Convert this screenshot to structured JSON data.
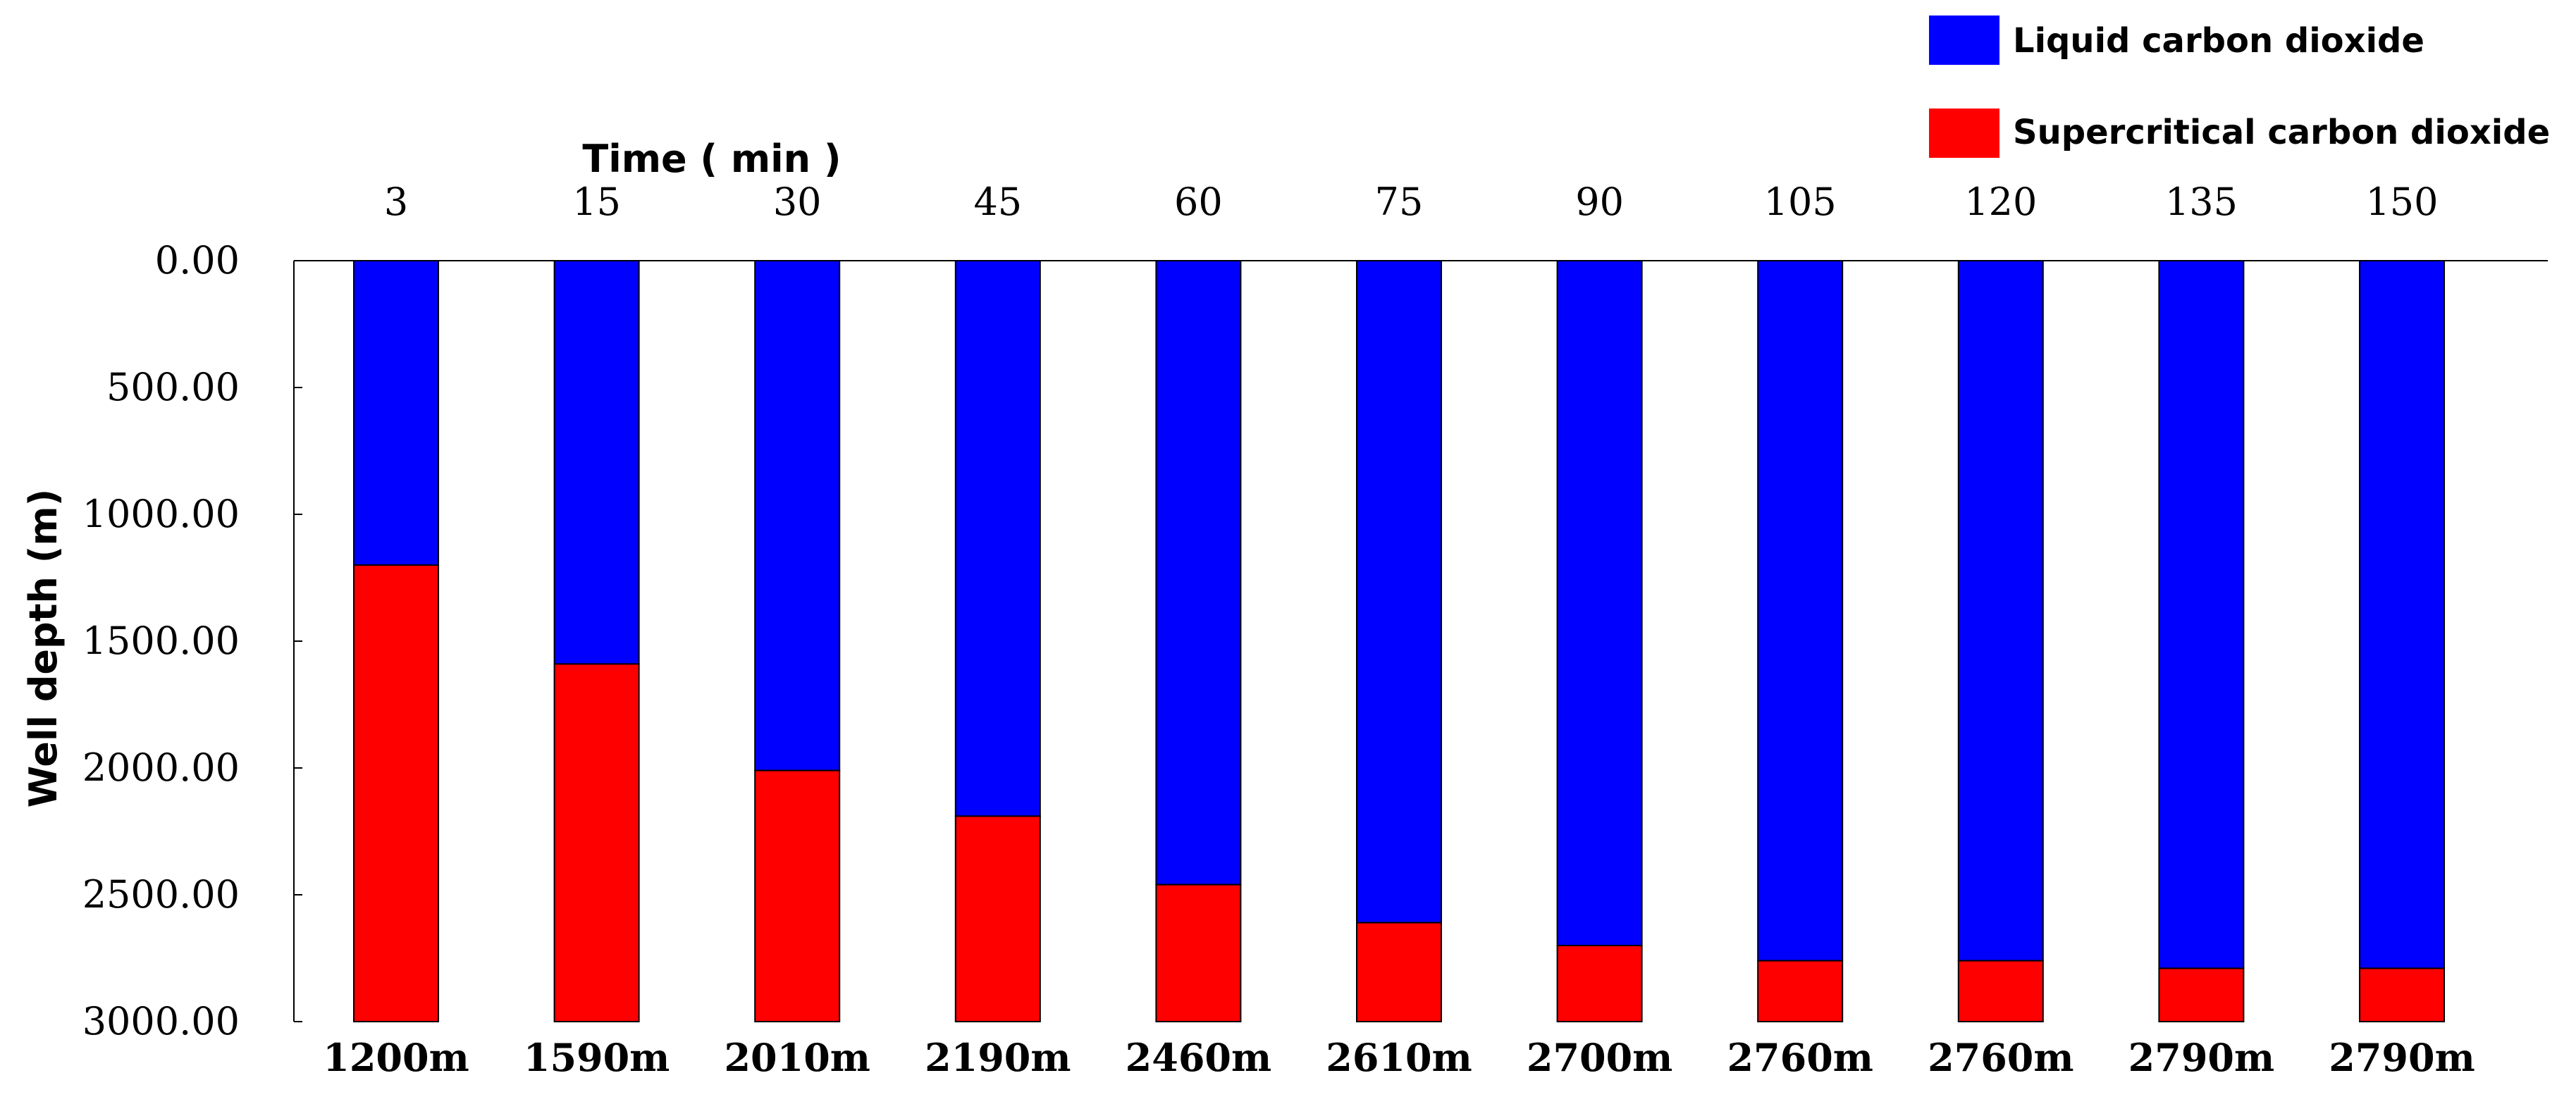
{
  "chart_data": {
    "type": "bar",
    "stacked": true,
    "xlabel": "Time ( min )",
    "ylabel": "Well depth (m)",
    "x_axis_position": "top",
    "y_axis_inverted": true,
    "categories": [
      "3",
      "15",
      "30",
      "45",
      "60",
      "75",
      "90",
      "105",
      "120",
      "135",
      "150"
    ],
    "ylim": [
      0,
      3000
    ],
    "yticks": [
      "0.00",
      "500.00",
      "1000.00",
      "1500.00",
      "2000.00",
      "2500.00",
      "3000.00"
    ],
    "series": [
      {
        "name": "Liquid carbon dioxide",
        "color": "#0000ff",
        "values": [
          1200,
          1590,
          2010,
          2190,
          2460,
          2610,
          2700,
          2760,
          2760,
          2790,
          2790
        ]
      },
      {
        "name": "Supercritical carbon dioxide",
        "color": "#ff0000",
        "values": [
          1800,
          1410,
          990,
          810,
          540,
          390,
          300,
          240,
          240,
          210,
          210
        ]
      }
    ],
    "bar_labels": [
      "1200m",
      "1590m",
      "2010m",
      "2190m",
      "2460m",
      "2610m",
      "2700m",
      "2760m",
      "2760m",
      "2790m",
      "2790m"
    ],
    "legend_position": "top-right",
    "grid": false
  }
}
